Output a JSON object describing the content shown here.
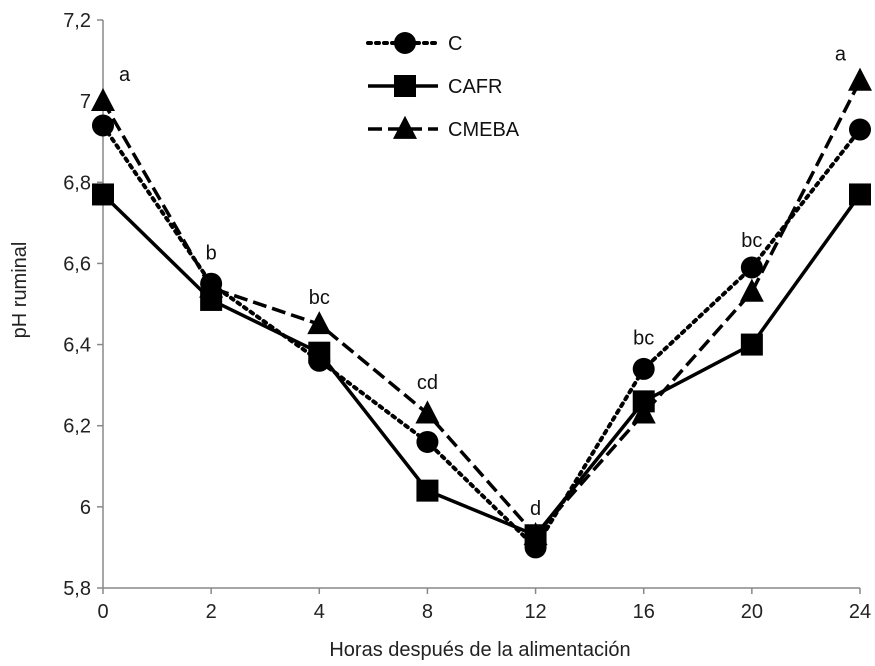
{
  "chart_data": {
    "type": "line",
    "title": "",
    "xlabel": "Horas después de la alimentación",
    "ylabel": "pH ruminal",
    "categories": [
      "0",
      "2",
      "4",
      "8",
      "12",
      "16",
      "20",
      "24"
    ],
    "ylim": [
      5.8,
      7.2
    ],
    "y_ticks": [
      5.8,
      6.0,
      6.2,
      6.4,
      6.6,
      6.8,
      7.0,
      7.2
    ],
    "y_tick_labels": [
      "5,8",
      "6",
      "6,2",
      "6,4",
      "6,6",
      "6,8",
      "7",
      "7,2"
    ],
    "grid": false,
    "legend_position": "top-center",
    "series": [
      {
        "name": "C",
        "marker": "circle",
        "line_style": "dotted",
        "color": "#000000",
        "values": [
          6.94,
          6.55,
          6.36,
          6.16,
          5.9,
          6.34,
          6.59,
          6.93
        ]
      },
      {
        "name": "CAFR",
        "marker": "square",
        "line_style": "solid",
        "color": "#000000",
        "values": [
          6.77,
          6.51,
          6.38,
          6.04,
          5.93,
          6.26,
          6.4,
          6.77
        ]
      },
      {
        "name": "CMEBA",
        "marker": "triangle",
        "line_style": "dashed",
        "color": "#000000",
        "values": [
          7.0,
          6.54,
          6.45,
          6.23,
          5.93,
          6.23,
          6.53,
          7.05
        ]
      }
    ],
    "annotations": [
      {
        "category": "0",
        "text": "a",
        "value": 7.05
      },
      {
        "category": "2",
        "text": "b",
        "value": 6.61
      },
      {
        "category": "4",
        "text": "bc",
        "value": 6.5
      },
      {
        "category": "8",
        "text": "cd",
        "value": 6.29
      },
      {
        "category": "12",
        "text": "d",
        "value": 5.98
      },
      {
        "category": "16",
        "text": "bc",
        "value": 6.4
      },
      {
        "category": "20",
        "text": "bc",
        "value": 6.64
      },
      {
        "category": "24",
        "text": "a",
        "value": 7.1
      }
    ]
  }
}
